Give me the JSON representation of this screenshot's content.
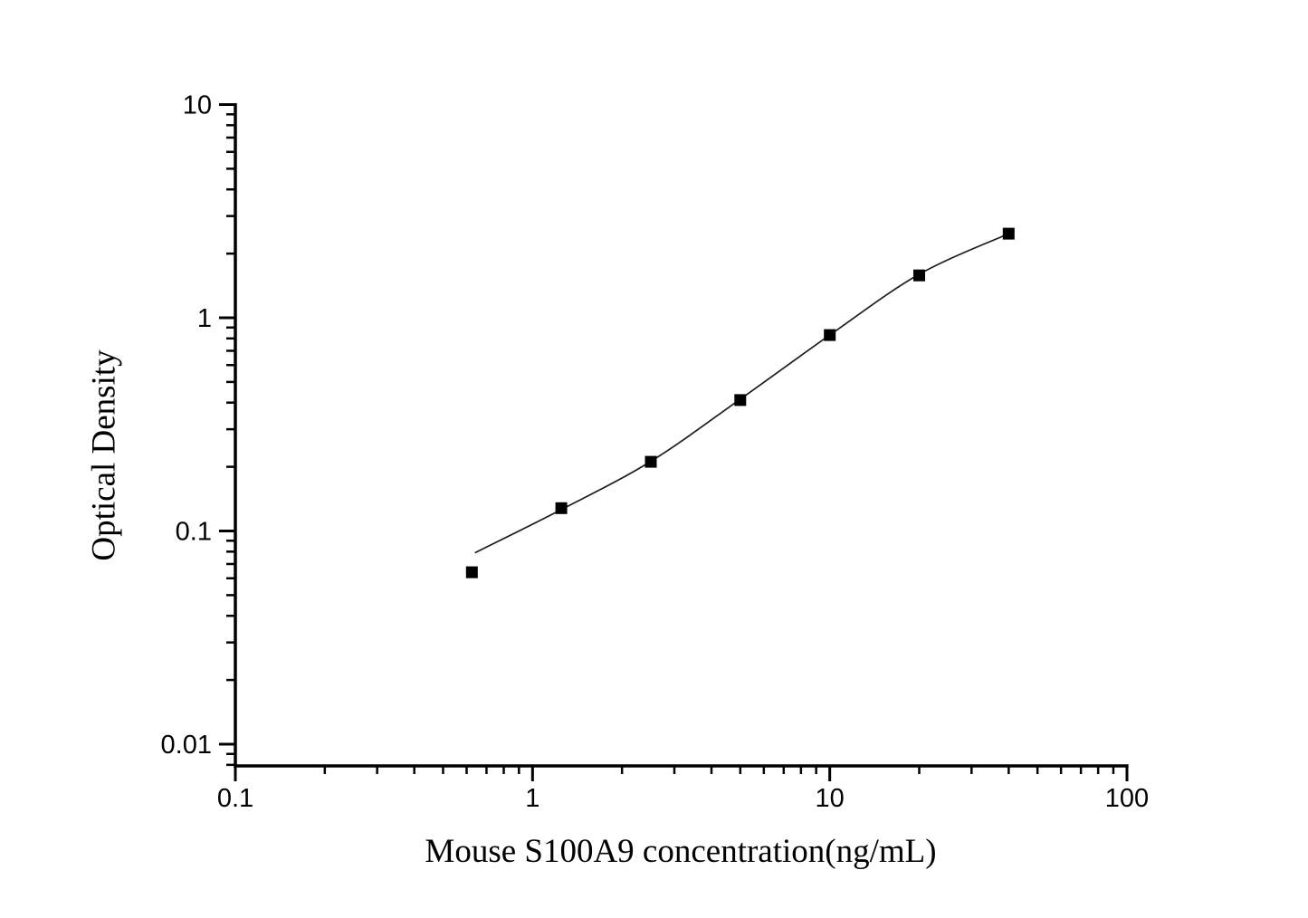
{
  "figure": {
    "background": "#ffffff"
  },
  "chart_data": {
    "type": "scatter",
    "title": "",
    "xlabel": "Mouse S100A9 concentration(ng/mL)",
    "ylabel": "Optical Density",
    "grid": false,
    "legend": "none",
    "axis_color": "#000000",
    "marker_color": "#000000",
    "curve_color": "#1c1c1c",
    "x_axis": {
      "scale": "log",
      "min": 0.1,
      "max": 100,
      "major_ticks": [
        0.1,
        1,
        10,
        100
      ],
      "tick_labels": [
        "0.1",
        "1",
        "10",
        "100"
      ]
    },
    "y_axis": {
      "scale": "log",
      "min": 0.008,
      "max": 10,
      "major_ticks": [
        10,
        1,
        0.1,
        0.01
      ],
      "tick_labels": [
        "10",
        "1",
        "0.1",
        "0.01"
      ]
    },
    "series": [
      {
        "name": "standard points",
        "type": "scatter",
        "marker": "filled-square",
        "x": [
          0.625,
          1.25,
          2.5,
          5,
          10,
          20,
          40
        ],
        "y": [
          0.064,
          0.128,
          0.211,
          0.411,
          0.83,
          1.58,
          2.48
        ]
      },
      {
        "name": "fit curve",
        "type": "line",
        "x": [
          0.64,
          1.25,
          2.5,
          5,
          10,
          20,
          40
        ],
        "y": [
          0.079,
          0.126,
          0.212,
          0.415,
          0.83,
          1.6,
          2.48
        ]
      }
    ]
  }
}
